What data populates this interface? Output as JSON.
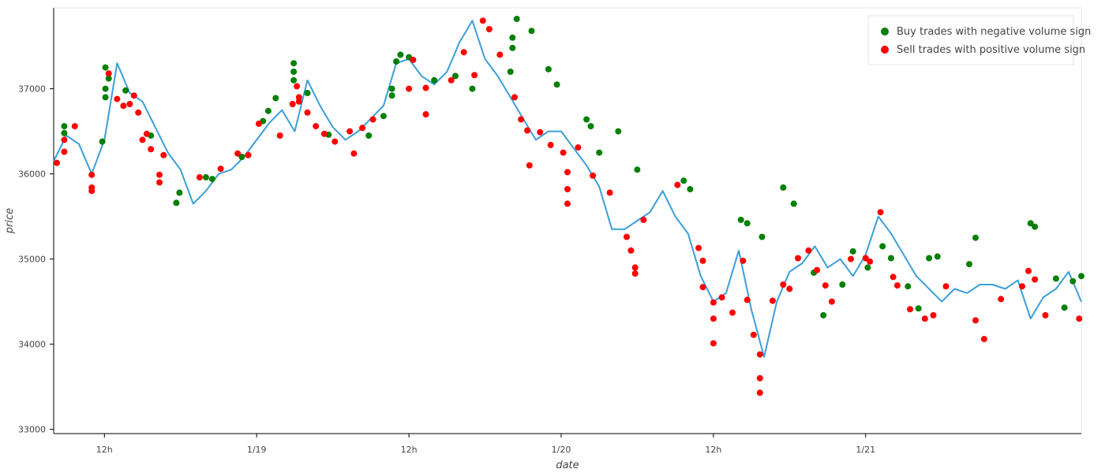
{
  "chart_data": {
    "type": "line",
    "xlabel": "date",
    "ylabel": "price",
    "ylim": [
      32950,
      37950
    ],
    "yticks": [
      33000,
      34000,
      35000,
      36000,
      37000
    ],
    "x_range": [
      "2024-01-18T08:00",
      "2024-01-21T17:00"
    ],
    "xticks": [
      {
        "value": "2024-01-18T12:00",
        "label": "12h"
      },
      {
        "value": "2024-01-19T00:00",
        "label": "1/19"
      },
      {
        "value": "2024-01-19T12:00",
        "label": "12h"
      },
      {
        "value": "2024-01-20T00:00",
        "label": "1/20"
      },
      {
        "value": "2024-01-20T12:00",
        "label": "12h"
      },
      {
        "value": "2024-01-21T00:00",
        "label": "1/21"
      }
    ],
    "grid": false,
    "legend_position": "top-right",
    "colors": {
      "line": "#3b9ed9",
      "buy": "#008000",
      "sell": "#ff0000"
    },
    "price_series": {
      "x": [
        "2024-01-18T08:00",
        "2024-01-18T09:00",
        "2024-01-18T10:00",
        "2024-01-18T11:00",
        "2024-01-18T12:00",
        "2024-01-18T13:00",
        "2024-01-18T14:00",
        "2024-01-18T15:00",
        "2024-01-18T16:00",
        "2024-01-18T17:00",
        "2024-01-18T18:00",
        "2024-01-18T19:00",
        "2024-01-18T20:00",
        "2024-01-18T21:00",
        "2024-01-18T22:00",
        "2024-01-18T23:00",
        "2024-01-19T00:00",
        "2024-01-19T01:00",
        "2024-01-19T02:00",
        "2024-01-19T03:00",
        "2024-01-19T04:00",
        "2024-01-19T05:00",
        "2024-01-19T06:00",
        "2024-01-19T07:00",
        "2024-01-19T08:00",
        "2024-01-19T09:00",
        "2024-01-19T10:00",
        "2024-01-19T11:00",
        "2024-01-19T12:00",
        "2024-01-19T13:00",
        "2024-01-19T14:00",
        "2024-01-19T15:00",
        "2024-01-19T16:00",
        "2024-01-19T17:00",
        "2024-01-19T18:00",
        "2024-01-19T19:00",
        "2024-01-19T20:00",
        "2024-01-19T21:00",
        "2024-01-19T22:00",
        "2024-01-19T23:00",
        "2024-01-20T00:00",
        "2024-01-20T01:00",
        "2024-01-20T02:00",
        "2024-01-20T03:00",
        "2024-01-20T04:00",
        "2024-01-20T05:00",
        "2024-01-20T06:00",
        "2024-01-20T07:00",
        "2024-01-20T08:00",
        "2024-01-20T09:00",
        "2024-01-20T10:00",
        "2024-01-20T11:00",
        "2024-01-20T12:00",
        "2024-01-20T13:00",
        "2024-01-20T14:00",
        "2024-01-20T15:00",
        "2024-01-20T16:00",
        "2024-01-20T17:00",
        "2024-01-20T18:00",
        "2024-01-20T19:00",
        "2024-01-20T20:00",
        "2024-01-20T21:00",
        "2024-01-20T22:00",
        "2024-01-20T23:00",
        "2024-01-21T00:00",
        "2024-01-21T01:00",
        "2024-01-21T02:00",
        "2024-01-21T03:00",
        "2024-01-21T04:00",
        "2024-01-21T05:00",
        "2024-01-21T06:00",
        "2024-01-21T07:00",
        "2024-01-21T08:00",
        "2024-01-21T09:00",
        "2024-01-21T10:00",
        "2024-01-21T11:00",
        "2024-01-21T12:00",
        "2024-01-21T13:00",
        "2024-01-21T14:00",
        "2024-01-21T15:00",
        "2024-01-21T16:00",
        "2024-01-21T17:00"
      ],
      "y": [
        36150,
        36450,
        36350,
        36000,
        36400,
        37300,
        36950,
        36850,
        36550,
        36250,
        36050,
        35650,
        35800,
        36000,
        36050,
        36200,
        36400,
        36600,
        36750,
        36500,
        37100,
        36800,
        36550,
        36400,
        36500,
        36650,
        36800,
        37300,
        37350,
        37150,
        37050,
        37200,
        37550,
        37800,
        37350,
        37150,
        36900,
        36650,
        36400,
        36500,
        36500,
        36300,
        36100,
        35850,
        35350,
        35350,
        35450,
        35550,
        35800,
        35500,
        35300,
        34800,
        34500,
        34600,
        35100,
        34400,
        33850,
        34500,
        34850,
        34950,
        35150,
        34900,
        35000,
        34800,
        35050,
        35500,
        35300,
        35050,
        34800,
        34650,
        34500,
        34650,
        34600,
        34700,
        34700,
        34650,
        34750,
        34300,
        34550,
        34650,
        34850,
        34500
      ]
    },
    "series": [
      {
        "name": "Buy trades with negative volume sign",
        "points": [
          [
            "2024-01-18T08:50",
            36560
          ],
          [
            "2024-01-18T08:50",
            36480
          ],
          [
            "2024-01-18T11:50",
            36380
          ],
          [
            "2024-01-18T12:05",
            37250
          ],
          [
            "2024-01-18T12:05",
            37000
          ],
          [
            "2024-01-18T12:05",
            36900
          ],
          [
            "2024-01-18T12:20",
            37120
          ],
          [
            "2024-01-18T13:40",
            36980
          ],
          [
            "2024-01-18T15:40",
            36450
          ],
          [
            "2024-01-18T17:40",
            35660
          ],
          [
            "2024-01-18T17:55",
            35780
          ],
          [
            "2024-01-18T20:00",
            35960
          ],
          [
            "2024-01-18T20:30",
            35940
          ],
          [
            "2024-01-18T22:50",
            36200
          ],
          [
            "2024-01-19T00:30",
            36620
          ],
          [
            "2024-01-19T00:55",
            36740
          ],
          [
            "2024-01-19T01:30",
            36890
          ],
          [
            "2024-01-19T02:55",
            37300
          ],
          [
            "2024-01-19T02:55",
            37200
          ],
          [
            "2024-01-19T02:55",
            37100
          ],
          [
            "2024-01-19T04:00",
            36950
          ],
          [
            "2024-01-19T05:40",
            36460
          ],
          [
            "2024-01-19T08:50",
            36450
          ],
          [
            "2024-01-19T10:00",
            36680
          ],
          [
            "2024-01-19T10:40",
            36920
          ],
          [
            "2024-01-19T10:40",
            37000
          ],
          [
            "2024-01-19T11:00",
            37320
          ],
          [
            "2024-01-19T11:20",
            37400
          ],
          [
            "2024-01-19T12:00",
            37370
          ],
          [
            "2024-01-19T14:00",
            37100
          ],
          [
            "2024-01-19T15:40",
            37150
          ],
          [
            "2024-01-19T17:00",
            37000
          ],
          [
            "2024-01-19T20:00",
            37200
          ],
          [
            "2024-01-19T20:10",
            37600
          ],
          [
            "2024-01-19T20:10",
            37480
          ],
          [
            "2024-01-19T20:30",
            37820
          ],
          [
            "2024-01-19T21:40",
            37680
          ],
          [
            "2024-01-19T23:00",
            37230
          ],
          [
            "2024-01-19T23:40",
            37050
          ],
          [
            "2024-01-20T02:00",
            36640
          ],
          [
            "2024-01-20T02:20",
            36560
          ],
          [
            "2024-01-20T03:00",
            36250
          ],
          [
            "2024-01-20T04:30",
            36500
          ],
          [
            "2024-01-20T06:00",
            36050
          ],
          [
            "2024-01-20T09:40",
            35920
          ],
          [
            "2024-01-20T10:10",
            35820
          ],
          [
            "2024-01-20T14:10",
            35460
          ],
          [
            "2024-01-20T14:40",
            35420
          ],
          [
            "2024-01-20T15:50",
            35260
          ],
          [
            "2024-01-20T17:30",
            35840
          ],
          [
            "2024-01-20T18:20",
            35650
          ],
          [
            "2024-01-20T19:55",
            34840
          ],
          [
            "2024-01-20T20:40",
            34340
          ],
          [
            "2024-01-20T22:10",
            34700
          ],
          [
            "2024-01-20T23:00",
            35090
          ],
          [
            "2024-01-21T00:10",
            34900
          ],
          [
            "2024-01-21T01:20",
            35150
          ],
          [
            "2024-01-21T02:00",
            35010
          ],
          [
            "2024-01-21T03:20",
            34680
          ],
          [
            "2024-01-21T04:10",
            34420
          ],
          [
            "2024-01-21T05:00",
            35010
          ],
          [
            "2024-01-21T05:40",
            35030
          ],
          [
            "2024-01-21T08:10",
            34940
          ],
          [
            "2024-01-21T08:40",
            35250
          ],
          [
            "2024-01-21T13:00",
            35420
          ],
          [
            "2024-01-21T13:20",
            35380
          ],
          [
            "2024-01-21T15:00",
            34770
          ],
          [
            "2024-01-21T15:40",
            34430
          ],
          [
            "2024-01-21T16:20",
            34740
          ],
          [
            "2024-01-21T17:00",
            34800
          ]
        ]
      },
      {
        "name": "Sell trades with positive volume sign",
        "points": [
          [
            "2024-01-18T08:15",
            36130
          ],
          [
            "2024-01-18T08:50",
            36400
          ],
          [
            "2024-01-18T08:50",
            36260
          ],
          [
            "2024-01-18T09:40",
            36560
          ],
          [
            "2024-01-18T11:00",
            35990
          ],
          [
            "2024-01-18T11:00",
            35840
          ],
          [
            "2024-01-18T11:00",
            35800
          ],
          [
            "2024-01-18T12:20",
            37180
          ],
          [
            "2024-01-18T13:00",
            36880
          ],
          [
            "2024-01-18T13:30",
            36800
          ],
          [
            "2024-01-18T14:00",
            36820
          ],
          [
            "2024-01-18T14:20",
            36920
          ],
          [
            "2024-01-18T14:40",
            36720
          ],
          [
            "2024-01-18T15:00",
            36400
          ],
          [
            "2024-01-18T15:20",
            36470
          ],
          [
            "2024-01-18T15:40",
            36290
          ],
          [
            "2024-01-18T16:20",
            35990
          ],
          [
            "2024-01-18T16:20",
            35900
          ],
          [
            "2024-01-18T16:40",
            36220
          ],
          [
            "2024-01-18T19:30",
            35960
          ],
          [
            "2024-01-18T21:10",
            36060
          ],
          [
            "2024-01-18T22:30",
            36240
          ],
          [
            "2024-01-18T23:20",
            36220
          ],
          [
            "2024-01-19T00:10",
            36590
          ],
          [
            "2024-01-19T01:50",
            36450
          ],
          [
            "2024-01-19T02:50",
            36820
          ],
          [
            "2024-01-19T03:10",
            37030
          ],
          [
            "2024-01-19T03:20",
            36900
          ],
          [
            "2024-01-19T03:20",
            36850
          ],
          [
            "2024-01-19T04:00",
            36720
          ],
          [
            "2024-01-19T04:40",
            36560
          ],
          [
            "2024-01-19T05:20",
            36470
          ],
          [
            "2024-01-19T06:10",
            36380
          ],
          [
            "2024-01-19T07:20",
            36500
          ],
          [
            "2024-01-19T07:40",
            36240
          ],
          [
            "2024-01-19T08:20",
            36540
          ],
          [
            "2024-01-19T09:10",
            36640
          ],
          [
            "2024-01-19T12:00",
            37000
          ],
          [
            "2024-01-19T12:20",
            37340
          ],
          [
            "2024-01-19T13:20",
            37010
          ],
          [
            "2024-01-19T13:20",
            36700
          ],
          [
            "2024-01-19T15:20",
            37100
          ],
          [
            "2024-01-19T16:20",
            37430
          ],
          [
            "2024-01-19T17:10",
            37160
          ],
          [
            "2024-01-19T17:50",
            37800
          ],
          [
            "2024-01-19T18:20",
            37700
          ],
          [
            "2024-01-19T19:10",
            37400
          ],
          [
            "2024-01-19T20:20",
            36900
          ],
          [
            "2024-01-19T20:50",
            36640
          ],
          [
            "2024-01-19T21:20",
            36510
          ],
          [
            "2024-01-19T21:30",
            36100
          ],
          [
            "2024-01-19T22:20",
            36490
          ],
          [
            "2024-01-19T23:10",
            36340
          ],
          [
            "2024-01-20T00:10",
            36250
          ],
          [
            "2024-01-20T00:30",
            36020
          ],
          [
            "2024-01-20T00:30",
            35820
          ],
          [
            "2024-01-20T00:30",
            35650
          ],
          [
            "2024-01-20T01:20",
            36310
          ],
          [
            "2024-01-20T02:30",
            35980
          ],
          [
            "2024-01-20T03:50",
            35780
          ],
          [
            "2024-01-20T05:10",
            35260
          ],
          [
            "2024-01-20T05:30",
            35100
          ],
          [
            "2024-01-20T05:50",
            34900
          ],
          [
            "2024-01-20T05:50",
            34830
          ],
          [
            "2024-01-20T06:30",
            35460
          ],
          [
            "2024-01-20T09:10",
            35870
          ],
          [
            "2024-01-20T10:50",
            35130
          ],
          [
            "2024-01-20T11:10",
            34980
          ],
          [
            "2024-01-20T11:10",
            34670
          ],
          [
            "2024-01-20T12:00",
            34490
          ],
          [
            "2024-01-20T12:00",
            34300
          ],
          [
            "2024-01-20T12:00",
            34010
          ],
          [
            "2024-01-20T12:40",
            34550
          ],
          [
            "2024-01-20T13:30",
            34370
          ],
          [
            "2024-01-20T14:20",
            34980
          ],
          [
            "2024-01-20T14:40",
            34520
          ],
          [
            "2024-01-20T15:10",
            34110
          ],
          [
            "2024-01-20T15:40",
            33880
          ],
          [
            "2024-01-20T15:40",
            33600
          ],
          [
            "2024-01-20T15:40",
            33430
          ],
          [
            "2024-01-20T16:40",
            34510
          ],
          [
            "2024-01-20T17:30",
            34700
          ],
          [
            "2024-01-20T18:00",
            34650
          ],
          [
            "2024-01-20T18:40",
            35010
          ],
          [
            "2024-01-20T19:30",
            35100
          ],
          [
            "2024-01-20T20:10",
            34870
          ],
          [
            "2024-01-20T20:50",
            34690
          ],
          [
            "2024-01-20T21:20",
            34500
          ],
          [
            "2024-01-20T22:50",
            35000
          ],
          [
            "2024-01-21T00:00",
            35010
          ],
          [
            "2024-01-21T00:20",
            34970
          ],
          [
            "2024-01-21T01:10",
            35550
          ],
          [
            "2024-01-21T02:10",
            34790
          ],
          [
            "2024-01-21T02:30",
            34690
          ],
          [
            "2024-01-21T03:30",
            34410
          ],
          [
            "2024-01-21T04:40",
            34300
          ],
          [
            "2024-01-21T05:20",
            34340
          ],
          [
            "2024-01-21T06:20",
            34680
          ],
          [
            "2024-01-21T08:40",
            34280
          ],
          [
            "2024-01-21T09:20",
            34060
          ],
          [
            "2024-01-21T10:40",
            34530
          ],
          [
            "2024-01-21T12:20",
            34680
          ],
          [
            "2024-01-21T12:50",
            34860
          ],
          [
            "2024-01-21T13:20",
            34760
          ],
          [
            "2024-01-21T14:10",
            34340
          ],
          [
            "2024-01-21T16:50",
            34300
          ]
        ]
      }
    ]
  }
}
